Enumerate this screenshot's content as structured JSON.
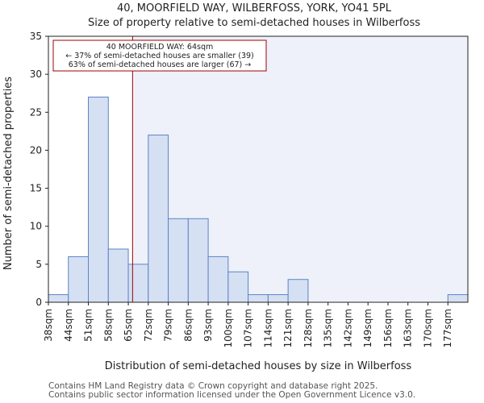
{
  "chart_data": {
    "type": "bar",
    "title": "40, MOORFIELD WAY, WILBERFOSS, YORK, YO41 5PL",
    "subtitle": "Size of property relative to semi-detached houses in Wilberfoss",
    "xlabel": "Distribution of semi-detached houses by size in Wilberfoss",
    "ylabel": "Number of semi-detached properties",
    "categories": [
      "38sqm",
      "44sqm",
      "51sqm",
      "58sqm",
      "65sqm",
      "72sqm",
      "79sqm",
      "86sqm",
      "93sqm",
      "100sqm",
      "107sqm",
      "114sqm",
      "121sqm",
      "128sqm",
      "135sqm",
      "142sqm",
      "149sqm",
      "156sqm",
      "163sqm",
      "170sqm",
      "177sqm"
    ],
    "values": [
      1,
      6,
      27,
      7,
      5,
      22,
      11,
      11,
      6,
      4,
      1,
      1,
      3,
      0,
      0,
      0,
      0,
      0,
      0,
      0,
      1
    ],
    "ylim": [
      0,
      35
    ],
    "yticks": [
      0,
      5,
      10,
      15,
      20,
      25,
      30,
      35
    ],
    "marker": {
      "value": 64,
      "unit": "sqm",
      "color": "#a00000",
      "lines": [
        "40 MOORFIELD WAY: 64sqm",
        "← 37% of semi-detached houses are smaller (39)",
        "63% of semi-detached houses are larger (67) →"
      ]
    },
    "bar_fill": "#d6e0f3",
    "bar_stroke": "#5b84c4",
    "highlight_bg": "#eef1fa"
  },
  "footer": {
    "line1": "Contains HM Land Registry data © Crown copyright and database right 2025.",
    "line2": "Contains public sector information licensed under the Open Government Licence v3.0."
  }
}
